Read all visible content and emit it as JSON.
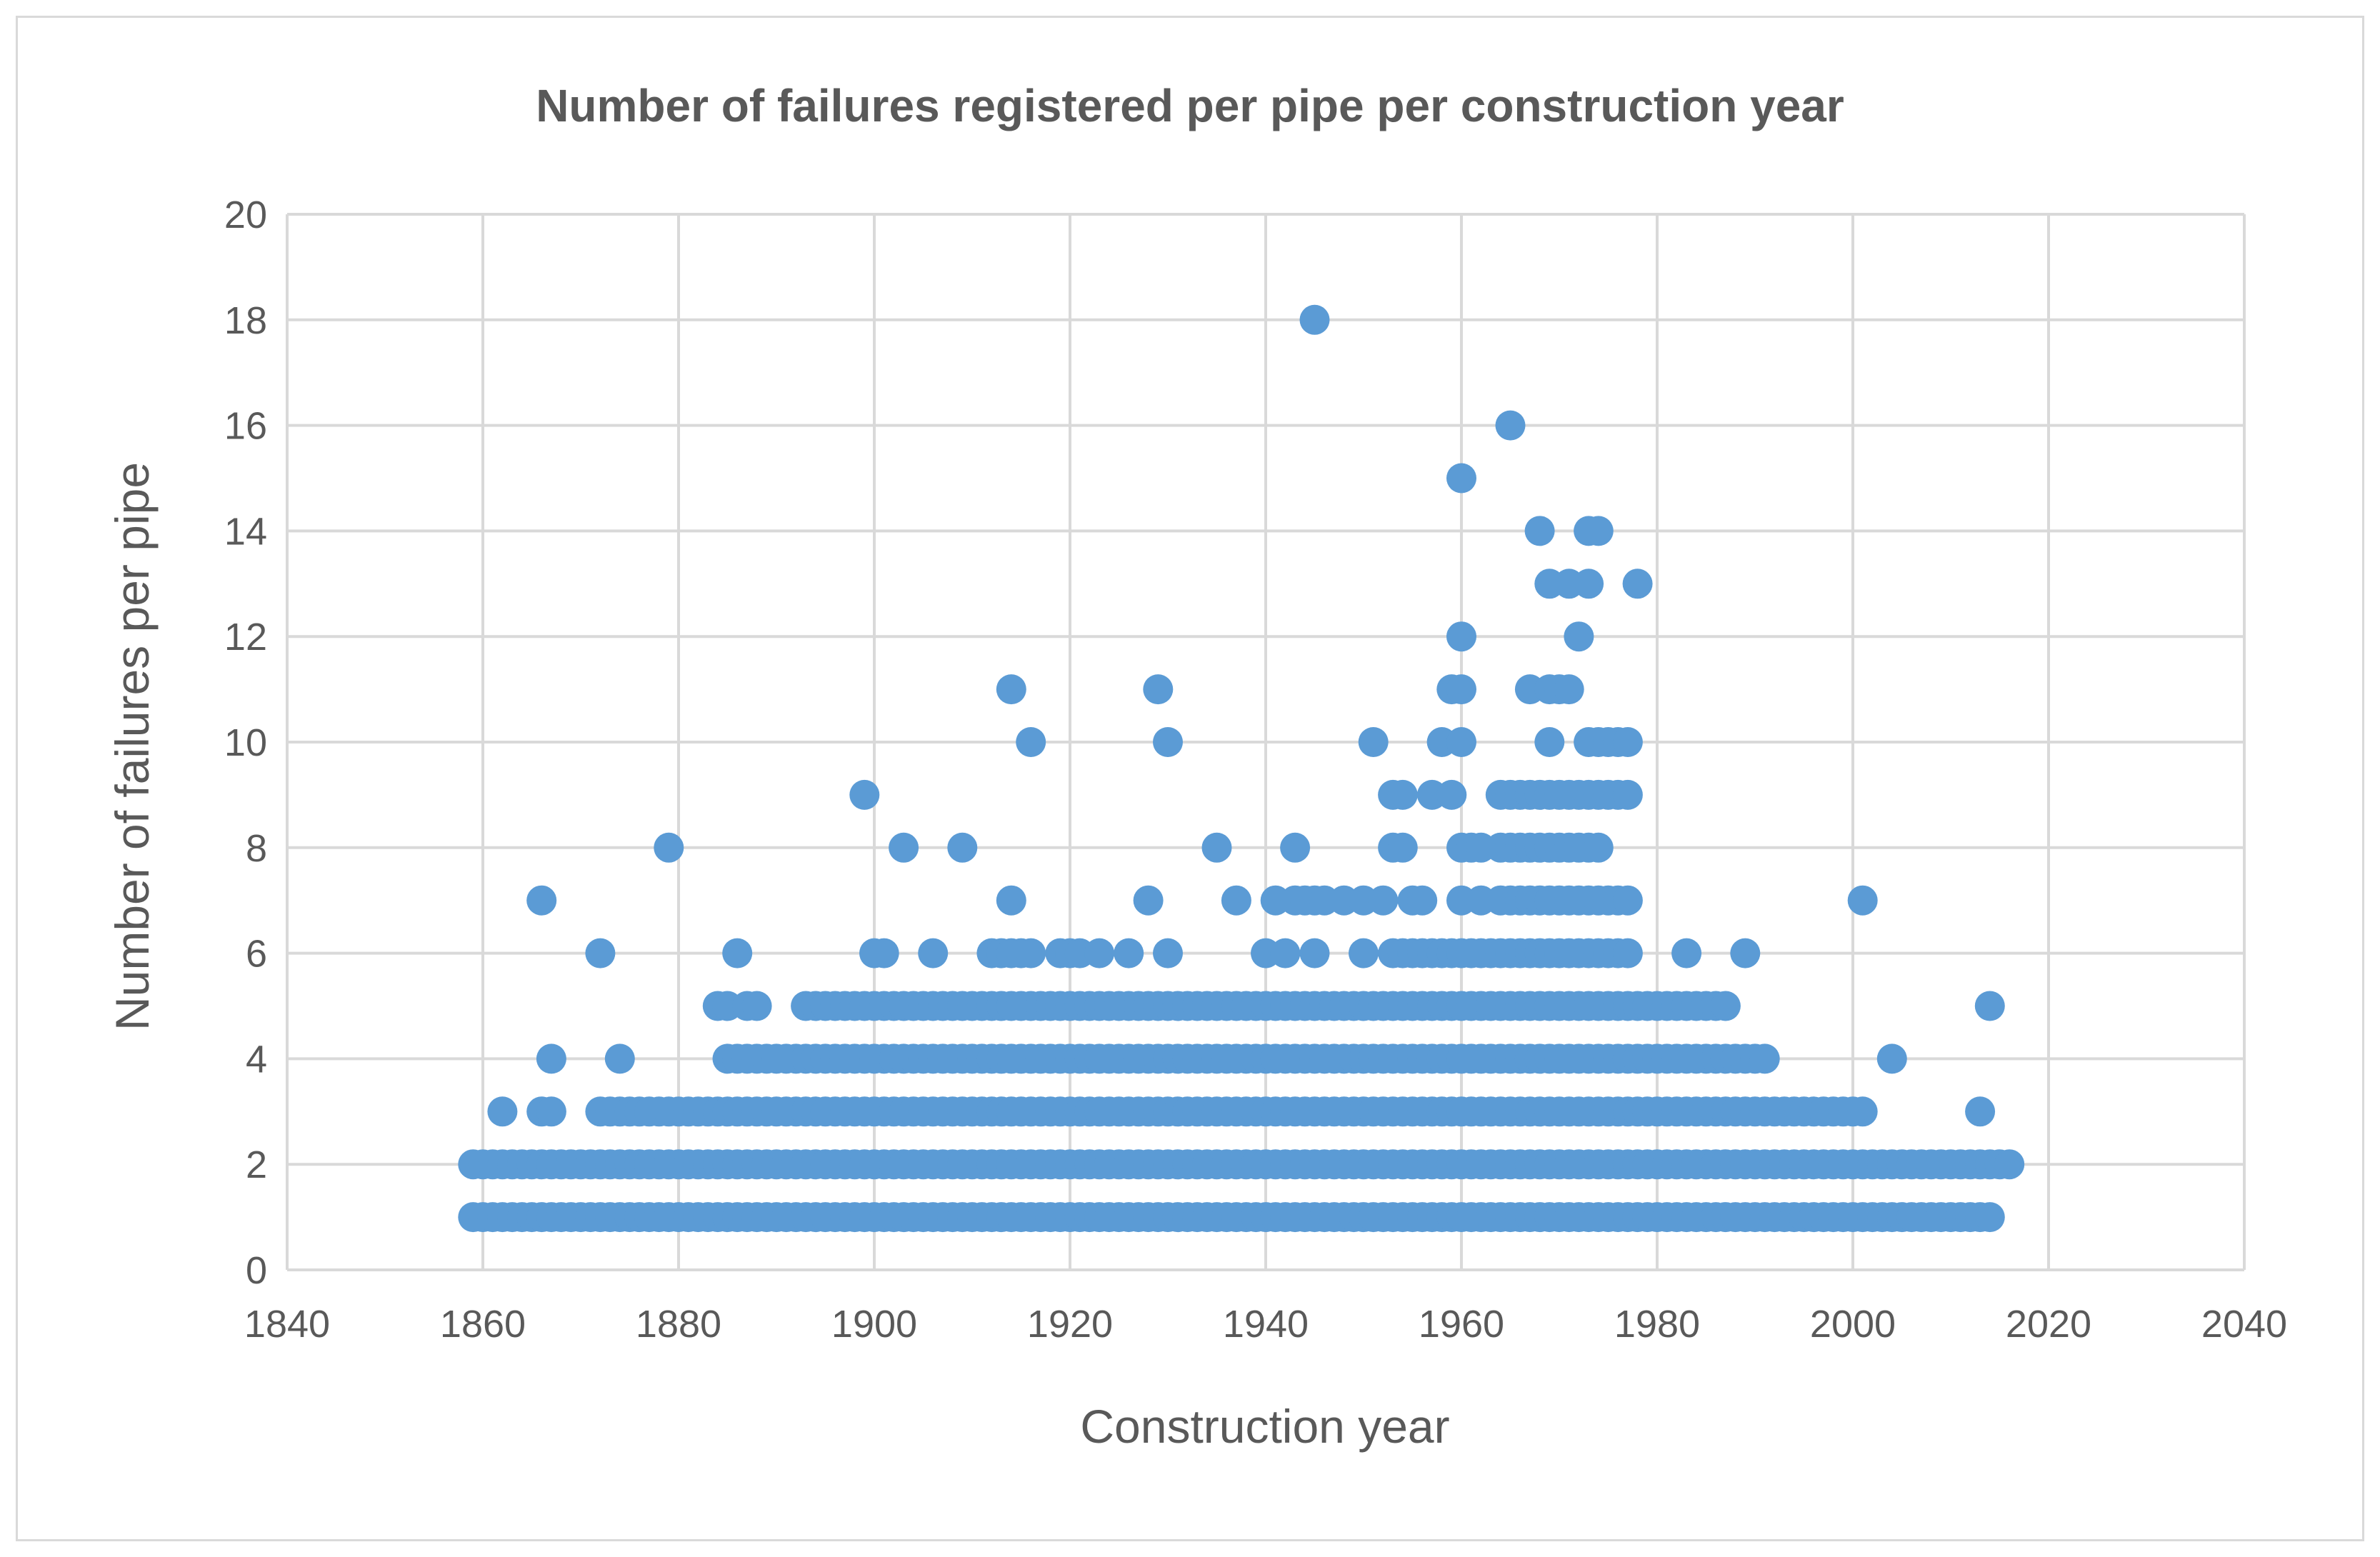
{
  "chart_data": {
    "type": "scatter",
    "title": "Number of failures registered per pipe per construction year",
    "xlabel": "Construction year",
    "ylabel": "Number of failures per pipe",
    "xlim": [
      1840,
      2040
    ],
    "ylim": [
      0,
      20
    ],
    "xticks": [
      "1840",
      "1860",
      "1880",
      "1900",
      "1920",
      "1940",
      "1960",
      "1980",
      "2000",
      "2020",
      "2040"
    ],
    "yticks": [
      "0",
      "2",
      "4",
      "6",
      "8",
      "10",
      "12",
      "14",
      "16",
      "18",
      "20"
    ],
    "grid": true,
    "legend": "none",
    "marker_color": "#5b9bd5",
    "series": [
      {
        "name": "Failures per pipe",
        "points": [
          [
            1859,
            1
          ],
          [
            1859,
            2
          ],
          [
            1862,
            3
          ],
          [
            1866,
            3
          ],
          [
            1867,
            3
          ],
          [
            1866,
            7
          ],
          [
            1867,
            4
          ],
          [
            1872,
            6
          ],
          [
            1872,
            3
          ],
          [
            1874,
            4
          ],
          [
            1874,
            3
          ],
          [
            1876,
            3
          ],
          [
            1879,
            8
          ],
          [
            1879,
            3
          ],
          [
            1880,
            3
          ],
          [
            1884,
            5
          ],
          [
            1885,
            5
          ],
          [
            1885,
            4
          ],
          [
            1885,
            3
          ],
          [
            1886,
            6
          ],
          [
            1887,
            5
          ],
          [
            1888,
            5
          ],
          [
            1888,
            3
          ],
          [
            1889,
            3
          ],
          [
            1889,
            4
          ],
          [
            1891,
            4
          ],
          [
            1893,
            5
          ],
          [
            1894,
            5
          ],
          [
            1893,
            4
          ],
          [
            1895,
            4
          ],
          [
            1899,
            9
          ],
          [
            1900,
            6
          ],
          [
            1901,
            6
          ],
          [
            1899,
            5
          ],
          [
            1901,
            5
          ],
          [
            1898,
            4
          ],
          [
            1903,
            8
          ],
          [
            1904,
            5
          ],
          [
            1905,
            5
          ],
          [
            1906,
            6
          ],
          [
            1905,
            4
          ],
          [
            1902,
            3
          ],
          [
            1909,
            8
          ],
          [
            1908,
            4
          ],
          [
            1910,
            4
          ],
          [
            1912,
            6
          ],
          [
            1913,
            6
          ],
          [
            1912,
            5
          ],
          [
            1914,
            11
          ],
          [
            1914,
            7
          ],
          [
            1914,
            6
          ],
          [
            1914,
            5
          ],
          [
            1915,
            6
          ],
          [
            1916,
            10
          ],
          [
            1916,
            6
          ],
          [
            1917,
            5
          ],
          [
            1919,
            6
          ],
          [
            1920,
            6
          ],
          [
            1921,
            6
          ],
          [
            1919,
            5
          ],
          [
            1921,
            5
          ],
          [
            1922,
            5
          ],
          [
            1923,
            6
          ],
          [
            1926,
            6
          ],
          [
            1927,
            5
          ],
          [
            1928,
            7
          ],
          [
            1929,
            11
          ],
          [
            1929,
            5
          ],
          [
            1930,
            10
          ],
          [
            1930,
            6
          ],
          [
            1930,
            5
          ],
          [
            1935,
            8
          ],
          [
            1936,
            5
          ],
          [
            1937,
            7
          ],
          [
            1938,
            5
          ],
          [
            1940,
            6
          ],
          [
            1941,
            7
          ],
          [
            1942,
            6
          ],
          [
            1943,
            8
          ],
          [
            1943,
            7
          ],
          [
            1944,
            7
          ],
          [
            1945,
            18
          ],
          [
            1945,
            7
          ],
          [
            1945,
            6
          ],
          [
            1945,
            5
          ],
          [
            1946,
            7
          ],
          [
            1948,
            7
          ],
          [
            1950,
            7
          ],
          [
            1951,
            10
          ],
          [
            1952,
            7
          ],
          [
            1950,
            6
          ],
          [
            1950,
            5
          ],
          [
            1953,
            9
          ],
          [
            1954,
            9
          ],
          [
            1953,
            8
          ],
          [
            1954,
            8
          ],
          [
            1953,
            6
          ],
          [
            1955,
            7
          ],
          [
            1956,
            7
          ],
          [
            1957,
            9
          ],
          [
            1958,
            10
          ],
          [
            1959,
            11
          ],
          [
            1959,
            9
          ],
          [
            1960,
            15
          ],
          [
            1960,
            12
          ],
          [
            1960,
            11
          ],
          [
            1960,
            10
          ],
          [
            1960,
            8
          ],
          [
            1960,
            7
          ],
          [
            1961,
            8
          ],
          [
            1962,
            7
          ],
          [
            1962,
            8
          ],
          [
            1964,
            9
          ],
          [
            1965,
            16
          ],
          [
            1965,
            9
          ],
          [
            1965,
            8
          ],
          [
            1966,
            8
          ],
          [
            1967,
            11
          ],
          [
            1968,
            14
          ],
          [
            1968,
            9
          ],
          [
            1968,
            8
          ],
          [
            1969,
            13
          ],
          [
            1969,
            11
          ],
          [
            1969,
            10
          ],
          [
            1970,
            11
          ],
          [
            1970,
            9
          ],
          [
            1971,
            13
          ],
          [
            1971,
            11
          ],
          [
            1972,
            12
          ],
          [
            1972,
            9
          ],
          [
            1972,
            8
          ],
          [
            1973,
            14
          ],
          [
            1973,
            13
          ],
          [
            1973,
            10
          ],
          [
            1974,
            14
          ],
          [
            1974,
            10
          ],
          [
            1974,
            9
          ],
          [
            1975,
            10
          ],
          [
            1975,
            9
          ],
          [
            1976,
            10
          ],
          [
            1976,
            9
          ],
          [
            1977,
            10
          ],
          [
            1977,
            9
          ],
          [
            1977,
            7
          ],
          [
            1977,
            6
          ],
          [
            1978,
            13
          ],
          [
            1977,
            5
          ],
          [
            1981,
            5
          ],
          [
            1980,
            4
          ],
          [
            1981,
            3
          ],
          [
            1983,
            6
          ],
          [
            1984,
            5
          ],
          [
            1983,
            4
          ],
          [
            1985,
            3
          ],
          [
            1986,
            5
          ],
          [
            1987,
            4
          ],
          [
            1988,
            4
          ],
          [
            1988,
            3
          ],
          [
            1989,
            6
          ],
          [
            1989,
            3
          ],
          [
            1991,
            4
          ],
          [
            1993,
            3
          ],
          [
            1994,
            3
          ],
          [
            1996,
            3
          ],
          [
            1998,
            3
          ],
          [
            2000,
            3
          ],
          [
            2001,
            7
          ],
          [
            2001,
            3
          ],
          [
            2004,
            4
          ],
          [
            2008,
            2
          ],
          [
            2012,
            2
          ],
          [
            2013,
            3
          ],
          [
            2014,
            5
          ],
          [
            2016,
            2
          ]
        ],
        "dense_range": [
          {
            "y": 1,
            "from": 1859,
            "to": 2014
          },
          {
            "y": 2,
            "from": 1859,
            "to": 2016
          },
          {
            "y": 3,
            "from": 1872,
            "to": 2001
          },
          {
            "y": 4,
            "from": 1885,
            "to": 1991
          },
          {
            "y": 5,
            "from": 1893,
            "to": 1987
          },
          {
            "y": 6,
            "from": 1953,
            "to": 1977
          },
          {
            "y": 7,
            "from": 1964,
            "to": 1977
          },
          {
            "y": 8,
            "from": 1964,
            "to": 1974
          },
          {
            "y": 9,
            "from": 1964,
            "to": 1977
          }
        ]
      }
    ]
  }
}
